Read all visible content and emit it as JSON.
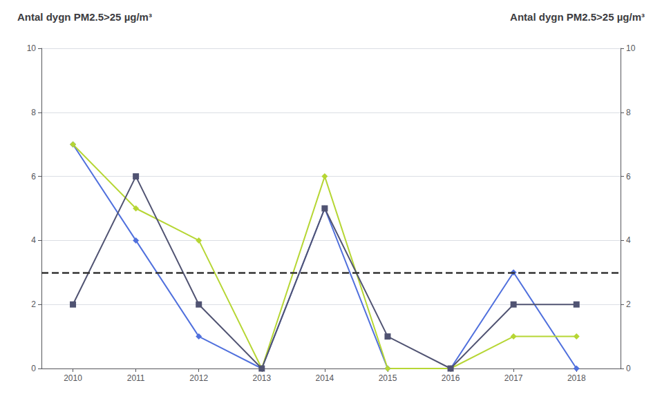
{
  "chart_data": {
    "type": "line",
    "title": "Antal dygn PM2.5>25 µg/m³",
    "title_right": "Antal dygn PM2.5>25 µg/m³",
    "x": [
      2010,
      2011,
      2012,
      2013,
      2014,
      2015,
      2016,
      2017,
      2018
    ],
    "series": [
      {
        "values": [
          7,
          4,
          1,
          0,
          5,
          0,
          0,
          3,
          0
        ],
        "marker": "diamond"
      },
      {
        "values": [
          7,
          5,
          4,
          0,
          6,
          0,
          0,
          1,
          1
        ],
        "marker": "diamond"
      },
      {
        "values": [
          2,
          6,
          2,
          0,
          5,
          1,
          0,
          2,
          2
        ],
        "marker": "square"
      }
    ],
    "threshold": 3,
    "xlim": [
      2009.5,
      2018.7
    ],
    "xticks": [
      2010,
      2011,
      2012,
      2013,
      2014,
      2015,
      2016,
      2017,
      2018
    ],
    "ylim": [
      0,
      10
    ],
    "yticks": [
      0,
      2,
      4,
      6,
      8,
      10
    ],
    "y2lim": [
      0,
      10
    ],
    "y2ticks": [
      0,
      2,
      4,
      6,
      8,
      10
    ],
    "grid": true
  }
}
